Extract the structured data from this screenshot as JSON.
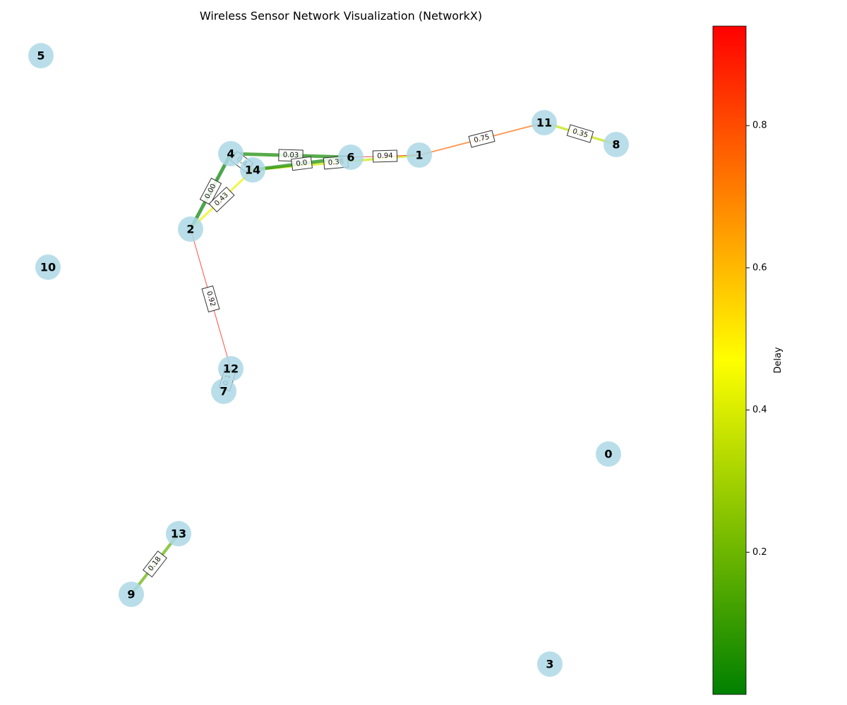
{
  "title": "Wireless Sensor Network Visualization (NetworkX)",
  "colorbar": {
    "label": "Delay",
    "range": [
      0.0,
      0.94
    ],
    "ticks": [
      "0.2",
      "0.4",
      "0.6",
      "0.8"
    ],
    "tick_values": [
      0.2,
      0.4,
      0.6,
      0.8
    ],
    "colors": [
      "#008000",
      "#ffff00",
      "#ff0000"
    ]
  },
  "node_color": "#add8e6",
  "nodes": [
    {
      "id": "0"
    },
    {
      "id": "1"
    },
    {
      "id": "2"
    },
    {
      "id": "3"
    },
    {
      "id": "4"
    },
    {
      "id": "5"
    },
    {
      "id": "6"
    },
    {
      "id": "7"
    },
    {
      "id": "8"
    },
    {
      "id": "9"
    },
    {
      "id": "10"
    },
    {
      "id": "11"
    },
    {
      "id": "12"
    },
    {
      "id": "13"
    },
    {
      "id": "14"
    }
  ],
  "edges": [
    {
      "source": "4",
      "target": "6",
      "delay": 0.03,
      "label": "0.03"
    },
    {
      "source": "14",
      "target": "1",
      "delay": 0.38,
      "label": "0.38"
    },
    {
      "source": "6",
      "target": "14",
      "delay": 0.03,
      "label": "0.0"
    },
    {
      "source": "6",
      "target": "1",
      "delay": 0.94,
      "label": "0.94"
    },
    {
      "source": "1",
      "target": "11",
      "delay": 0.75,
      "label": "0.75"
    },
    {
      "source": "11",
      "target": "8",
      "delay": 0.35,
      "label": "0.35"
    },
    {
      "source": "4",
      "target": "2",
      "delay": 0.0,
      "label": "0.00"
    },
    {
      "source": "2",
      "target": "14",
      "delay": 0.43,
      "label": "0.43"
    },
    {
      "source": "4",
      "target": "14",
      "delay": 0.4,
      "label": "0.4"
    },
    {
      "source": "2",
      "target": "12",
      "delay": 0.92,
      "label": "0.92"
    },
    {
      "source": "12",
      "target": "7",
      "delay": 0.1,
      "label": "0.1"
    },
    {
      "source": "13",
      "target": "9",
      "delay": 0.18,
      "label": "0.18"
    }
  ]
}
